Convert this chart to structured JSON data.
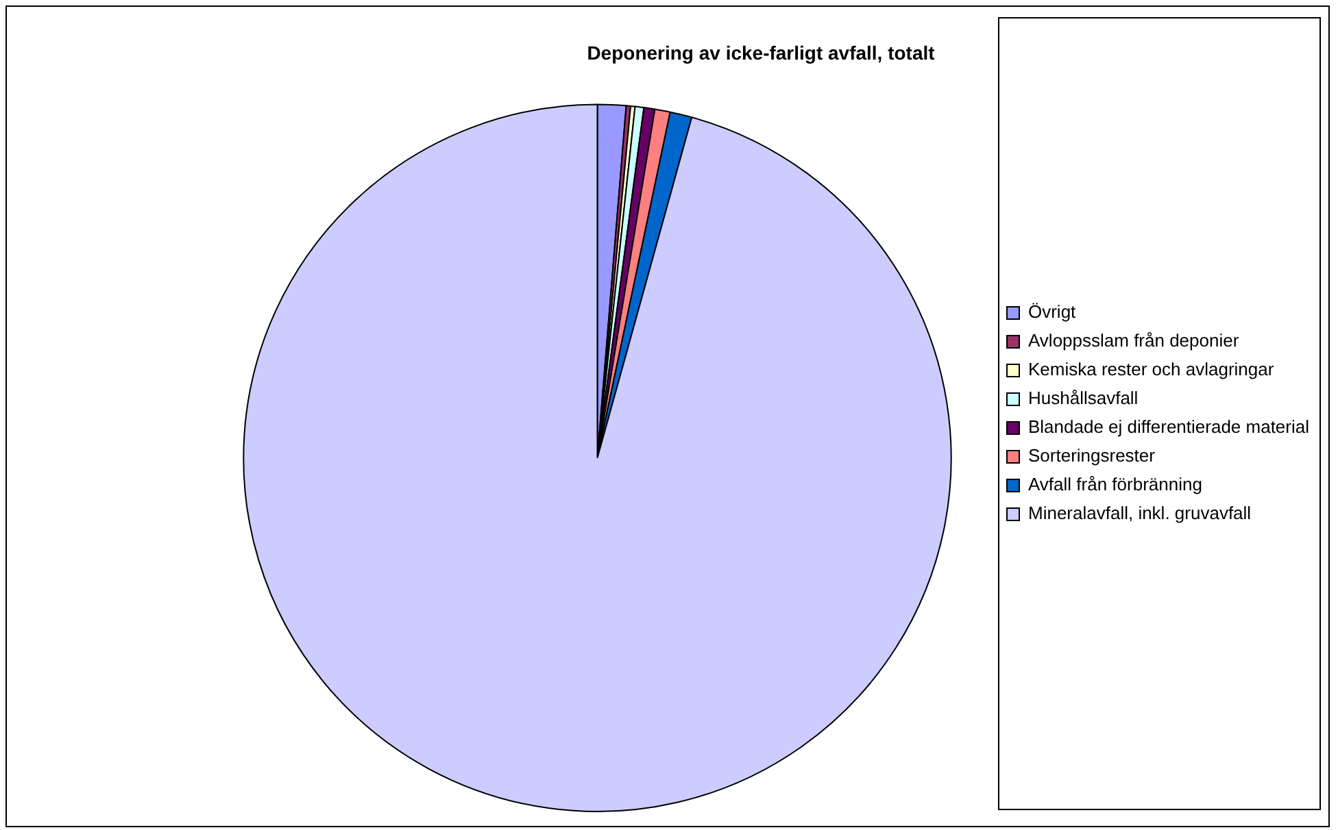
{
  "chart_data": {
    "type": "pie",
    "title": "Deponering av icke-farligt avfall, totalt",
    "categories": [
      "Övrigt",
      "Avloppsslam från deponier",
      "Kemiska rester och avlagringar",
      "Hushållsavfall",
      "Blandade ej differentierade material",
      "Sorteringsrester",
      "Avfall från förbränning",
      "Mineralavfall, inkl. gruvavfall"
    ],
    "values": [
      1.3,
      0.2,
      0.2,
      0.4,
      0.5,
      0.7,
      1.0,
      95.7
    ],
    "colors": [
      "#9999ff",
      "#993366",
      "#ffffcc",
      "#ccffff",
      "#660066",
      "#ff8080",
      "#0066cc",
      "#ccccff"
    ],
    "legend": "right"
  }
}
